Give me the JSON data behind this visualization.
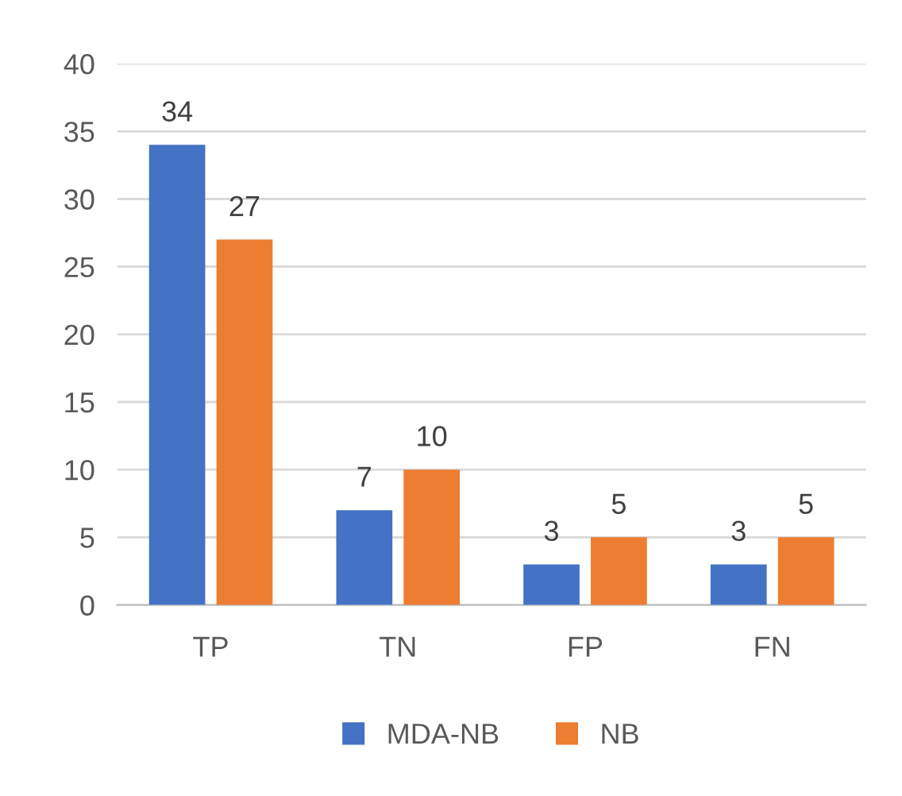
{
  "chart_data": {
    "type": "bar",
    "categories": [
      "TP",
      "TN",
      "FP",
      "FN"
    ],
    "series": [
      {
        "name": "MDA-NB",
        "color": "#4472c4",
        "values": [
          34,
          7,
          3,
          3
        ]
      },
      {
        "name": "NB",
        "color": "#ed7d31",
        "values": [
          27,
          10,
          5,
          5
        ]
      }
    ],
    "ylim": [
      0,
      40
    ],
    "yticks": [
      0,
      5,
      10,
      15,
      20,
      25,
      30,
      35,
      40
    ],
    "grid": "y",
    "legend": "bottom",
    "data_labels": true
  }
}
